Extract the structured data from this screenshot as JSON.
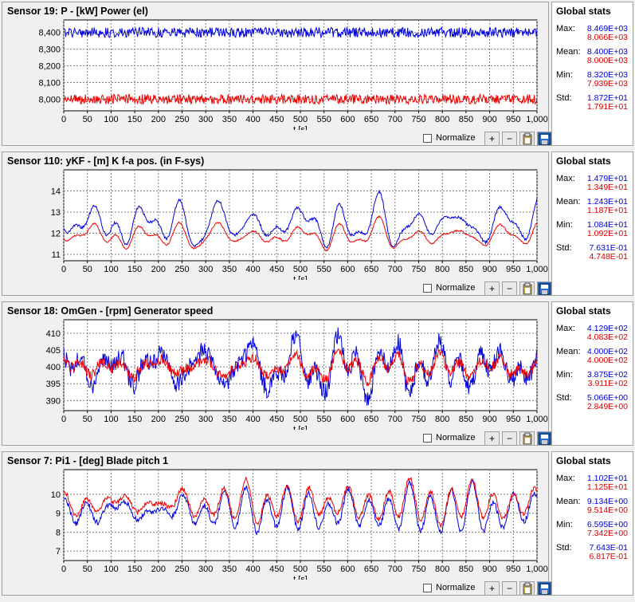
{
  "panels": [
    {
      "title": "Sensor 19: P - [kW] Power (el)",
      "yticks": [
        "8,400",
        "8,300",
        "8,200",
        "8,100",
        "8,000"
      ],
      "ytick_values": [
        8400,
        8300,
        8200,
        8100,
        8000
      ],
      "ylim": [
        7930,
        8475
      ],
      "xticks": [
        "0",
        "50",
        "100",
        "150",
        "200",
        "250",
        "300",
        "350",
        "400",
        "450",
        "500",
        "550",
        "600",
        "650",
        "700",
        "750",
        "800",
        "850",
        "900",
        "950",
        "1,000"
      ],
      "xlabel": "t [s]",
      "normalize_label": "Normalize",
      "stats_title": "Global stats",
      "stats": [
        {
          "label": "Max:",
          "v1": "8.469E+03",
          "v2": "8.066E+03"
        },
        {
          "label": "Mean:",
          "v1": "8.400E+03",
          "v2": "8.000E+03"
        },
        {
          "label": "Min:",
          "v1": "8.320E+03",
          "v2": "7.939E+03"
        },
        {
          "label": "Std:",
          "v1": "1.872E+01",
          "v2": "1.791E+01"
        }
      ],
      "style": "noise"
    },
    {
      "title": "Sensor 110: yKF - [m] K f-a pos. (in F-sys)",
      "yticks": [
        "14",
        "13",
        "12",
        "11"
      ],
      "ytick_values": [
        14,
        13,
        12,
        11
      ],
      "ylim": [
        10.7,
        15.0
      ],
      "xticks": [
        "0",
        "50",
        "100",
        "150",
        "200",
        "250",
        "300",
        "350",
        "400",
        "450",
        "500",
        "550",
        "600",
        "650",
        "700",
        "750",
        "800",
        "850",
        "900",
        "950",
        "1,000"
      ],
      "xlabel": "t [s]",
      "normalize_label": "Normalize",
      "stats_title": "Global stats",
      "stats": [
        {
          "label": "Max:",
          "v1": "1.479E+01",
          "v2": "1.349E+01"
        },
        {
          "label": "Mean:",
          "v1": "1.243E+01",
          "v2": "1.187E+01"
        },
        {
          "label": "Min:",
          "v1": "1.084E+01",
          "v2": "1.092E+01"
        },
        {
          "label": "Std:",
          "v1": "7.631E-01",
          "v2": "4.748E-01"
        }
      ],
      "style": "smooth"
    },
    {
      "title": "Sensor 18: OmGen - [rpm] Generator speed",
      "yticks": [
        "410",
        "405",
        "400",
        "395",
        "390"
      ],
      "ytick_values": [
        410,
        405,
        400,
        395,
        390
      ],
      "ylim": [
        387,
        414
      ],
      "xticks": [
        "0",
        "50",
        "100",
        "150",
        "200",
        "250",
        "300",
        "350",
        "400",
        "450",
        "500",
        "550",
        "600",
        "650",
        "700",
        "750",
        "800",
        "850",
        "900",
        "950",
        "1,000"
      ],
      "xlabel": "t [s]",
      "normalize_label": "Normalize",
      "stats_title": "Global stats",
      "stats": [
        {
          "label": "Max:",
          "v1": "4.129E+02",
          "v2": "4.083E+02"
        },
        {
          "label": "Mean:",
          "v1": "4.000E+02",
          "v2": "4.000E+02"
        },
        {
          "label": "Min:",
          "v1": "3.875E+02",
          "v2": "3.911E+02"
        },
        {
          "label": "Std:",
          "v1": "5.066E+00",
          "v2": "2.849E+00"
        }
      ],
      "style": "speed"
    },
    {
      "title": "Sensor 7: Pi1 - [deg] Blade pitch 1",
      "yticks": [
        "10",
        "9",
        "8",
        "7"
      ],
      "ytick_values": [
        10,
        9,
        8,
        7
      ],
      "ylim": [
        6.5,
        11.3
      ],
      "xticks": [
        "0",
        "50",
        "100",
        "150",
        "200",
        "250",
        "300",
        "350",
        "400",
        "450",
        "500",
        "550",
        "600",
        "650",
        "700",
        "750",
        "800",
        "850",
        "900",
        "950",
        "1,000"
      ],
      "xlabel": "t [s]",
      "normalize_label": "Normalize",
      "stats_title": "Global stats",
      "stats": [
        {
          "label": "Max:",
          "v1": "1.102E+01",
          "v2": "1.125E+01"
        },
        {
          "label": "Mean:",
          "v1": "9.134E+00",
          "v2": "9.514E+00"
        },
        {
          "label": "Min:",
          "v1": "6.595E+00",
          "v2": "7.342E+00"
        },
        {
          "label": "Std:",
          "v1": "7.643E-01",
          "v2": "6.817E-01"
        }
      ],
      "style": "pitch"
    }
  ],
  "button_icons": [
    "plus-icon",
    "minus-icon",
    "clipboard-icon",
    "save-disk-icon"
  ],
  "button_glyphs": [
    "+",
    "−",
    "",
    ""
  ],
  "colors": {
    "series1": "#0000dd",
    "series2": "#ee0000",
    "grid": "#808080"
  }
}
